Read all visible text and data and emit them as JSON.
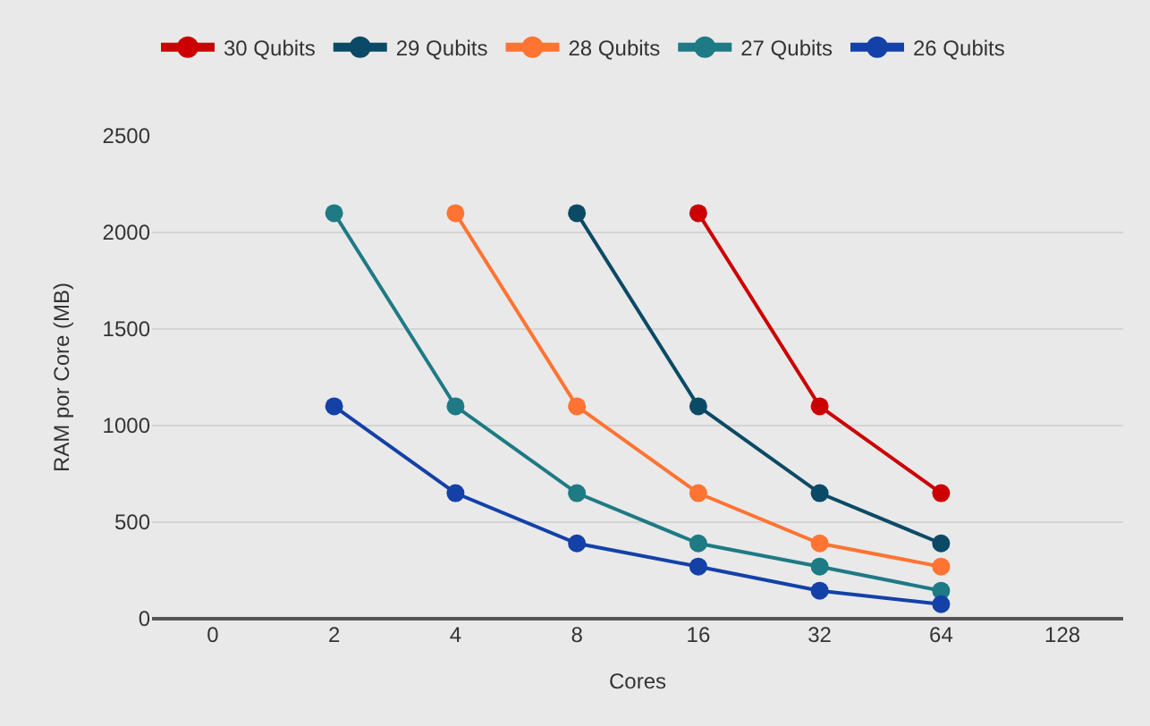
{
  "chart_data": {
    "type": "line",
    "xlabel": "Cores",
    "ylabel": "RAM por Core (MB)",
    "categories": [
      "0",
      "2",
      "4",
      "8",
      "16",
      "32",
      "64",
      "128"
    ],
    "series": [
      {
        "name": "30 Qubits",
        "color": "#cc0000",
        "values": [
          null,
          null,
          null,
          null,
          2100,
          1100,
          650,
          null
        ]
      },
      {
        "name": "29 Qubits",
        "color": "#0b4a66",
        "values": [
          null,
          null,
          null,
          2100,
          1100,
          650,
          390,
          null
        ]
      },
      {
        "name": "28 Qubits",
        "color": "#ff7433",
        "values": [
          null,
          null,
          2100,
          1100,
          650,
          390,
          270,
          null
        ]
      },
      {
        "name": "27 Qubits",
        "color": "#1e7a85",
        "values": [
          null,
          2100,
          1100,
          650,
          390,
          270,
          145,
          null
        ]
      },
      {
        "name": "26 Qubits",
        "color": "#1341a8",
        "values": [
          null,
          1100,
          650,
          390,
          270,
          145,
          75,
          null
        ]
      }
    ],
    "ylim": [
      0,
      2500
    ],
    "yticks": [
      0,
      500,
      1000,
      1500,
      2000,
      2500
    ],
    "grid": "y",
    "legend": "top left",
    "marker": "circle",
    "line_style": "solid"
  }
}
